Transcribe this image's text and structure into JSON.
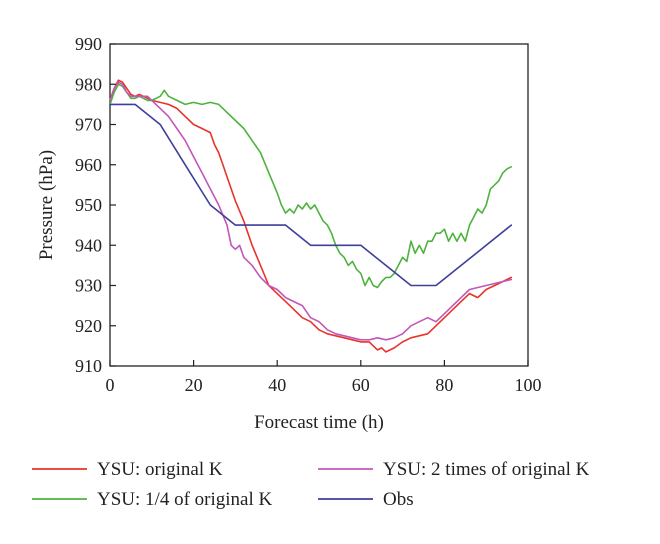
{
  "chart_data": {
    "type": "line",
    "xlabel": "Forecast time (h)",
    "ylabel": "Pressure (hPa)",
    "xlim": [
      0,
      100
    ],
    "ylim": [
      910,
      990
    ],
    "xticks": [
      0,
      20,
      40,
      60,
      80,
      100
    ],
    "yticks": [
      910,
      920,
      930,
      940,
      950,
      960,
      970,
      980,
      990
    ],
    "grid": false,
    "legend": "bottom",
    "series": [
      {
        "name": "YSU: original K",
        "color": "#e8322c",
        "x": [
          0,
          1,
          2,
          3,
          4,
          5,
          6,
          7,
          8,
          9,
          10,
          12,
          14,
          16,
          18,
          20,
          22,
          24,
          25,
          26,
          27,
          28,
          30,
          32,
          34,
          36,
          38,
          40,
          42,
          44,
          46,
          48,
          50,
          52,
          54,
          56,
          58,
          60,
          62,
          63,
          64,
          65,
          66,
          67,
          68,
          70,
          72,
          74,
          76,
          78,
          80,
          82,
          84,
          86,
          88,
          90,
          92,
          94,
          96
        ],
        "y": [
          976,
          979,
          981,
          980.5,
          979,
          977.5,
          977,
          977.5,
          977,
          976.5,
          976,
          975.5,
          975,
          974,
          972,
          970,
          969,
          968,
          965,
          963,
          960,
          957,
          951,
          946,
          940,
          935,
          930,
          928,
          926,
          924,
          922,
          921,
          919,
          918,
          917.5,
          917,
          916.5,
          916,
          916,
          915,
          914,
          914.5,
          913.5,
          914,
          914.5,
          916,
          917,
          917.5,
          918,
          920,
          922,
          924,
          926,
          928,
          927,
          929,
          930,
          931,
          932
        ]
      },
      {
        "name": "YSU: 1/4 of original K",
        "color": "#4db33d",
        "x": [
          0,
          1,
          2,
          3,
          4,
          5,
          6,
          7,
          8,
          9,
          10,
          12,
          13,
          14,
          16,
          18,
          20,
          22,
          24,
          26,
          28,
          30,
          32,
          34,
          36,
          38,
          40,
          41,
          42,
          43,
          44,
          45,
          46,
          47,
          48,
          49,
          50,
          51,
          52,
          53,
          54,
          55,
          56,
          57,
          58,
          59,
          60,
          61,
          62,
          63,
          64,
          65,
          66,
          67,
          68,
          69,
          70,
          71,
          72,
          73,
          74,
          75,
          76,
          77,
          78,
          79,
          80,
          81,
          82,
          83,
          84,
          85,
          86,
          87,
          88,
          89,
          90,
          91,
          92,
          93,
          94,
          95,
          96
        ],
        "y": [
          975,
          978,
          980,
          979.5,
          978,
          976.5,
          976.5,
          977,
          976.5,
          976,
          976,
          977,
          978.5,
          977,
          976,
          975,
          975.5,
          975,
          975.5,
          975,
          973,
          971,
          969,
          966,
          963,
          958,
          953,
          950,
          948,
          949,
          948,
          950,
          949,
          950.5,
          949,
          950,
          948,
          946,
          945,
          943,
          940,
          938,
          937,
          935,
          936,
          934,
          933,
          930,
          932,
          930,
          929.5,
          931,
          932,
          932,
          933,
          935,
          937,
          936,
          941,
          938,
          940,
          938,
          941,
          941,
          943,
          943,
          944,
          941,
          943,
          941,
          943,
          941,
          945,
          947,
          949,
          948,
          950,
          954,
          955,
          956,
          958,
          959,
          959.5
        ]
      },
      {
        "name": "YSU: 2 times of original K",
        "color": "#c257b8",
        "x": [
          0,
          1,
          2,
          3,
          4,
          5,
          6,
          7,
          8,
          9,
          10,
          12,
          14,
          16,
          18,
          20,
          22,
          24,
          26,
          28,
          29,
          30,
          31,
          32,
          34,
          36,
          38,
          40,
          42,
          44,
          46,
          48,
          50,
          52,
          54,
          56,
          58,
          60,
          62,
          64,
          66,
          68,
          70,
          72,
          74,
          76,
          78,
          80,
          82,
          84,
          86,
          88,
          90,
          92,
          94,
          96
        ],
        "y": [
          976,
          979,
          980.5,
          980,
          978,
          977,
          977,
          977,
          977,
          977,
          976,
          974,
          972,
          969,
          966,
          962,
          958,
          954,
          950,
          945,
          940,
          939,
          940,
          937,
          935,
          932,
          930,
          929,
          927,
          926,
          925,
          922,
          921,
          919,
          918,
          917.5,
          917,
          916.5,
          916.5,
          917,
          916.5,
          917,
          918,
          920,
          921,
          922,
          921,
          923,
          925,
          927,
          929,
          929.5,
          930,
          930.5,
          931,
          931.5
        ]
      },
      {
        "name": "Obs",
        "color": "#3d3f99",
        "x": [
          0,
          6,
          12,
          18,
          24,
          30,
          36,
          42,
          48,
          54,
          60,
          66,
          72,
          78,
          84,
          90,
          96
        ],
        "y": [
          975,
          975,
          970,
          960,
          950,
          945,
          945,
          945,
          940,
          940,
          940,
          935,
          930,
          930,
          935,
          940,
          945
        ]
      }
    ]
  }
}
